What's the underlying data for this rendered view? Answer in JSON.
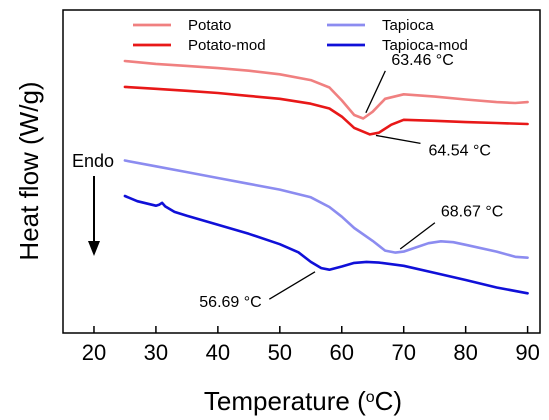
{
  "chart_data": {
    "type": "line",
    "xlabel": "Temperature (",
    "xlabel_sup": "o",
    "xlabel_end": "C)",
    "ylabel": "Heat flow (W/g)",
    "xlim": [
      15,
      92
    ],
    "x_ticks": [
      "20",
      "30",
      "40",
      "50",
      "60",
      "70",
      "80",
      "90"
    ],
    "y_ticks": [],
    "y_units": "arbitrary (stacked curves, no y tick labels)",
    "ylim": [
      0,
      100
    ],
    "grid": false,
    "legend_position": "top, two columns",
    "series": [
      {
        "name": "Potato",
        "color": "#f08080",
        "points": [
          [
            25,
            84.2
          ],
          [
            30,
            83.3
          ],
          [
            35,
            82.7
          ],
          [
            40,
            82.0
          ],
          [
            45,
            81.2
          ],
          [
            50,
            80.1
          ],
          [
            55,
            78.3
          ],
          [
            58,
            76.0
          ],
          [
            60,
            72.0
          ],
          [
            62,
            67.5
          ],
          [
            63.46,
            66.4
          ],
          [
            65,
            68.5
          ],
          [
            67,
            72.5
          ],
          [
            70,
            73.9
          ],
          [
            75,
            73.2
          ],
          [
            80,
            72.3
          ],
          [
            85,
            71.5
          ],
          [
            88,
            71.2
          ],
          [
            90,
            71.5
          ]
        ]
      },
      {
        "name": "Potato-mod",
        "color": "#e81818",
        "points": [
          [
            25,
            76.2
          ],
          [
            30,
            75.6
          ],
          [
            35,
            75.0
          ],
          [
            40,
            74.3
          ],
          [
            45,
            73.4
          ],
          [
            50,
            72.5
          ],
          [
            55,
            71.0
          ],
          [
            58,
            69.5
          ],
          [
            60,
            67.0
          ],
          [
            62,
            63.5
          ],
          [
            64.54,
            61.5
          ],
          [
            66,
            62.0
          ],
          [
            68,
            64.5
          ],
          [
            70,
            66.0
          ],
          [
            75,
            65.7
          ],
          [
            80,
            65.3
          ],
          [
            85,
            65.0
          ],
          [
            90,
            64.7
          ]
        ]
      },
      {
        "name": "Tapioca",
        "color": "#8c8cf0",
        "points": [
          [
            25,
            53.4
          ],
          [
            30,
            51.6
          ],
          [
            35,
            49.8
          ],
          [
            40,
            48.0
          ],
          [
            45,
            46.2
          ],
          [
            50,
            44.4
          ],
          [
            55,
            42.0
          ],
          [
            58,
            39.0
          ],
          [
            60,
            36.0
          ],
          [
            62,
            32.5
          ],
          [
            65,
            28.5
          ],
          [
            67,
            25.5
          ],
          [
            68.67,
            24.9
          ],
          [
            70,
            25.2
          ],
          [
            72,
            26.5
          ],
          [
            74,
            27.8
          ],
          [
            76,
            28.4
          ],
          [
            78,
            28.1
          ],
          [
            80,
            27.3
          ],
          [
            85,
            25.2
          ],
          [
            88,
            23.6
          ],
          [
            90,
            23.3
          ]
        ]
      },
      {
        "name": "Tapioca-mod",
        "color": "#1010d8",
        "points": [
          [
            25,
            42.4
          ],
          [
            27,
            40.8
          ],
          [
            30,
            39.4
          ],
          [
            30.5,
            39.7
          ],
          [
            31,
            40.3
          ],
          [
            31.5,
            39.2
          ],
          [
            33,
            37.5
          ],
          [
            35,
            36.3
          ],
          [
            40,
            33.5
          ],
          [
            45,
            30.7
          ],
          [
            50,
            27.5
          ],
          [
            53,
            25.0
          ],
          [
            55,
            22.0
          ],
          [
            56.69,
            20.1
          ],
          [
            58,
            19.6
          ],
          [
            60,
            20.6
          ],
          [
            62,
            21.7
          ],
          [
            64,
            22.0
          ],
          [
            66,
            21.8
          ],
          [
            70,
            20.8
          ],
          [
            75,
            18.6
          ],
          [
            80,
            16.4
          ],
          [
            85,
            14.1
          ],
          [
            90,
            12.3
          ]
        ]
      }
    ],
    "annotations": [
      {
        "text": "63.46 °C",
        "x": 63.46,
        "y": 66.4,
        "label_x": 68,
        "label_y": 83
      },
      {
        "text": "64.54 °C",
        "x": 64.54,
        "y": 61.5,
        "label_x": 74,
        "label_y": 55
      },
      {
        "text": "68.67 °C",
        "x": 68.67,
        "y": 24.9,
        "label_x": 76,
        "label_y": 36
      },
      {
        "text": "56.69 °C",
        "x": 56.69,
        "y": 20.1,
        "label_x": 37,
        "label_y": 8
      }
    ],
    "endo_label": "Endo",
    "endo_arrow": "down"
  }
}
